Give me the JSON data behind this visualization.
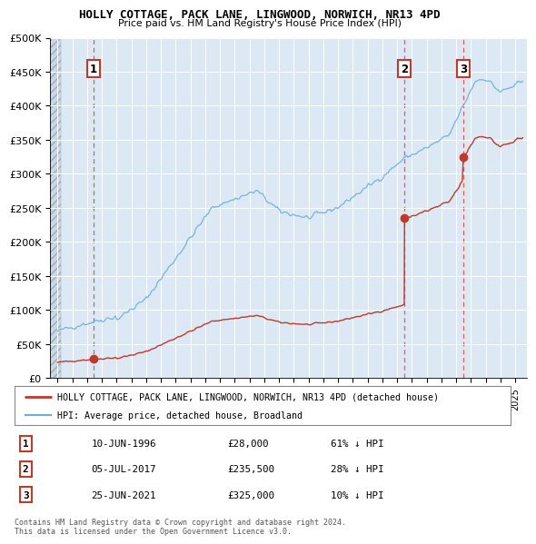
{
  "title": "HOLLY COTTAGE, PACK LANE, LINGWOOD, NORWICH, NR13 4PD",
  "subtitle": "Price paid vs. HM Land Registry's House Price Index (HPI)",
  "ylabel_ticks": [
    "£0",
    "£50K",
    "£100K",
    "£150K",
    "£200K",
    "£250K",
    "£300K",
    "£350K",
    "£400K",
    "£450K",
    "£500K"
  ],
  "ytick_values": [
    0,
    50000,
    100000,
    150000,
    200000,
    250000,
    300000,
    350000,
    400000,
    450000,
    500000
  ],
  "ylim": [
    0,
    500000
  ],
  "background_color": "#dce9f5",
  "hatch_color": "#b0bec5",
  "sale_points": [
    {
      "year": 1996.44,
      "price": 28000,
      "label": "1"
    },
    {
      "year": 2017.5,
      "price": 235500,
      "label": "2"
    },
    {
      "year": 2021.48,
      "price": 325000,
      "label": "3"
    }
  ],
  "legend_line1": "HOLLY COTTAGE, PACK LANE, LINGWOOD, NORWICH, NR13 4PD (detached house)",
  "legend_line2": "HPI: Average price, detached house, Broadland",
  "table_rows": [
    {
      "num": "1",
      "date": "10-JUN-1996",
      "price": "£28,000",
      "pct": "61% ↓ HPI"
    },
    {
      "num": "2",
      "date": "05-JUL-2017",
      "price": "£235,500",
      "pct": "28% ↓ HPI"
    },
    {
      "num": "3",
      "date": "25-JUN-2021",
      "price": "£325,000",
      "pct": "10% ↓ HPI"
    }
  ],
  "footer": "Contains HM Land Registry data © Crown copyright and database right 2024.\nThis data is licensed under the Open Government Licence v3.0.",
  "hpi_color": "#6baed6",
  "sold_color": "#c0392b",
  "dashed_line_color": "#e74c3c"
}
